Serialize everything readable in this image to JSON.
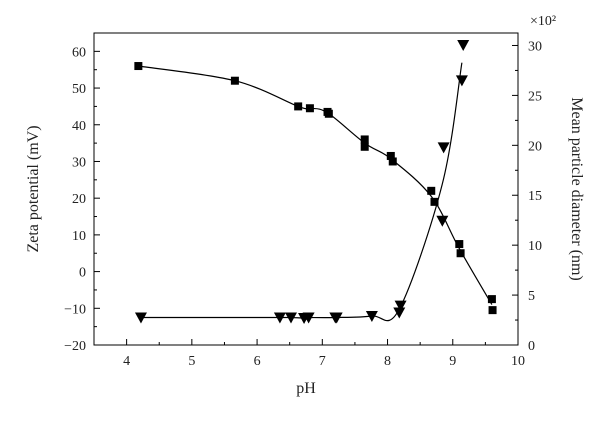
{
  "chart_data": {
    "type": "scatter",
    "title": "",
    "xlabel": "pH",
    "ylabel": "Zeta potential (mV)",
    "y2label": "Mean particle diameter (nm)",
    "y2_multiplier": "×10²",
    "xlim": [
      3.5,
      10
    ],
    "ylim": [
      -20,
      65
    ],
    "y2lim": [
      0,
      31.25
    ],
    "x_ticks": [
      "4",
      "5",
      "6",
      "7",
      "8",
      "9",
      "10"
    ],
    "y_ticks": [
      "60",
      "50",
      "40",
      "30",
      "20",
      "10",
      "0",
      "−10",
      "−20"
    ],
    "y2_ticks": [
      "30",
      "25",
      "20",
      "15",
      "10",
      "5",
      "0"
    ],
    "grid": false,
    "legend": "none",
    "series": [
      {
        "marker": "square",
        "axis": "left",
        "color": "#000000",
        "points": [
          [
            4.18,
            56
          ],
          [
            5.66,
            52
          ],
          [
            6.63,
            45
          ],
          [
            6.81,
            44.5
          ],
          [
            7.08,
            43.5
          ],
          [
            7.1,
            43
          ],
          [
            7.65,
            36
          ],
          [
            7.65,
            34
          ],
          [
            8.05,
            31.5
          ],
          [
            8.08,
            30
          ],
          [
            8.67,
            22
          ],
          [
            8.72,
            19
          ],
          [
            9.1,
            7.5
          ],
          [
            9.12,
            5
          ],
          [
            9.6,
            -7.5
          ],
          [
            9.61,
            -10.5
          ]
        ]
      },
      {
        "marker": "triangle-down",
        "axis": "right",
        "color": "#000000",
        "points": [
          [
            4.22,
            2.75
          ],
          [
            6.35,
            2.75
          ],
          [
            6.52,
            2.75
          ],
          [
            6.72,
            2.7
          ],
          [
            6.79,
            2.75
          ],
          [
            7.2,
            2.75
          ],
          [
            7.22,
            2.75
          ],
          [
            7.76,
            2.9
          ],
          [
            8.18,
            3.25
          ],
          [
            8.2,
            3.95
          ],
          [
            8.84,
            12.45
          ],
          [
            8.86,
            19.8
          ],
          [
            9.14,
            26.5
          ],
          [
            9.16,
            30.05
          ]
        ]
      }
    ]
  }
}
